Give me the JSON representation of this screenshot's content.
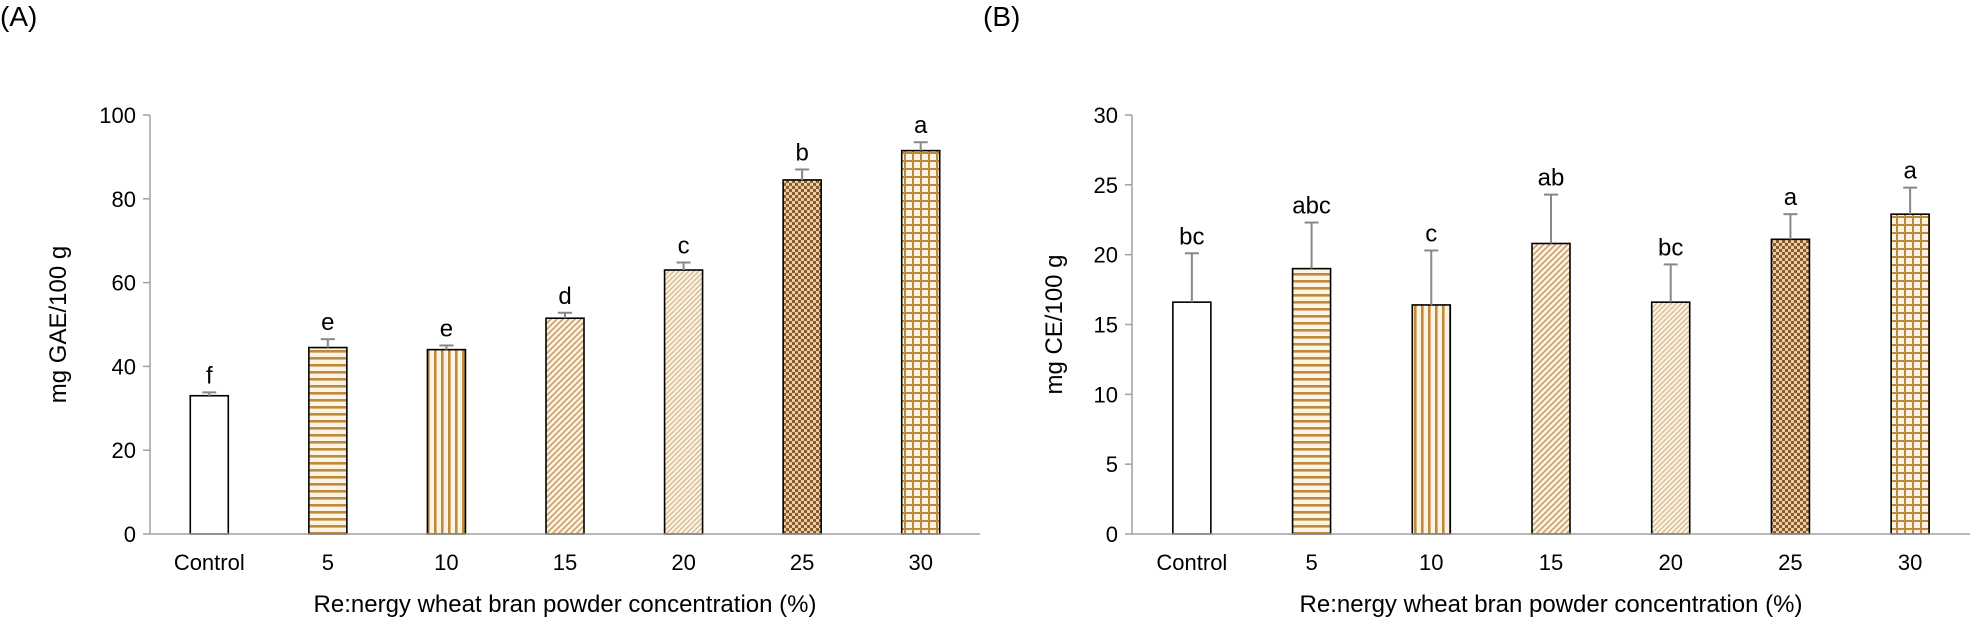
{
  "colors": {
    "bar_fill": "#c3a07a",
    "bar_light": "#ffffff",
    "bar_dark": "#8a5a2e",
    "stroke": "#000000",
    "axis": "#a0a0a0",
    "error": "#888888"
  },
  "chart_data": [
    {
      "panel_label": "(A)",
      "type": "bar",
      "categories": [
        "Control",
        "5",
        "10",
        "15",
        "20",
        "25",
        "30"
      ],
      "values": [
        33,
        44.5,
        44,
        51.5,
        63,
        84.5,
        91.5
      ],
      "errors": [
        0.8,
        2.0,
        1.0,
        1.3,
        1.8,
        2.5,
        2.0
      ],
      "significance": [
        "f",
        "e",
        "e",
        "d",
        "c",
        "b",
        "a"
      ],
      "patterns": [
        "none",
        "hlines",
        "vlines",
        "diag",
        "dots",
        "check",
        "grid"
      ],
      "ylabel": "mg GAE/100 g",
      "xlabel": "Re:nergy wheat bran powder concentration (%)",
      "ylim": [
        0,
        100
      ],
      "yticks": [
        0,
        20,
        40,
        60,
        80,
        100
      ]
    },
    {
      "panel_label": "(B)",
      "type": "bar",
      "categories": [
        "Control",
        "5",
        "10",
        "15",
        "20",
        "25",
        "30"
      ],
      "values": [
        16.6,
        19.0,
        16.4,
        20.8,
        16.6,
        21.1,
        22.9
      ],
      "errors": [
        3.5,
        3.3,
        3.9,
        3.5,
        2.7,
        1.8,
        1.9
      ],
      "significance": [
        "bc",
        "abc",
        "c",
        "ab",
        "bc",
        "a",
        "a"
      ],
      "patterns": [
        "none",
        "hlines",
        "vlines",
        "diag",
        "dots",
        "check",
        "grid"
      ],
      "ylabel": "mg CE/100 g",
      "xlabel": "Re:nergy wheat bran powder concentration (%)",
      "ylim": [
        0,
        30
      ],
      "yticks": [
        0,
        5,
        10,
        15,
        20,
        25,
        30
      ]
    }
  ]
}
